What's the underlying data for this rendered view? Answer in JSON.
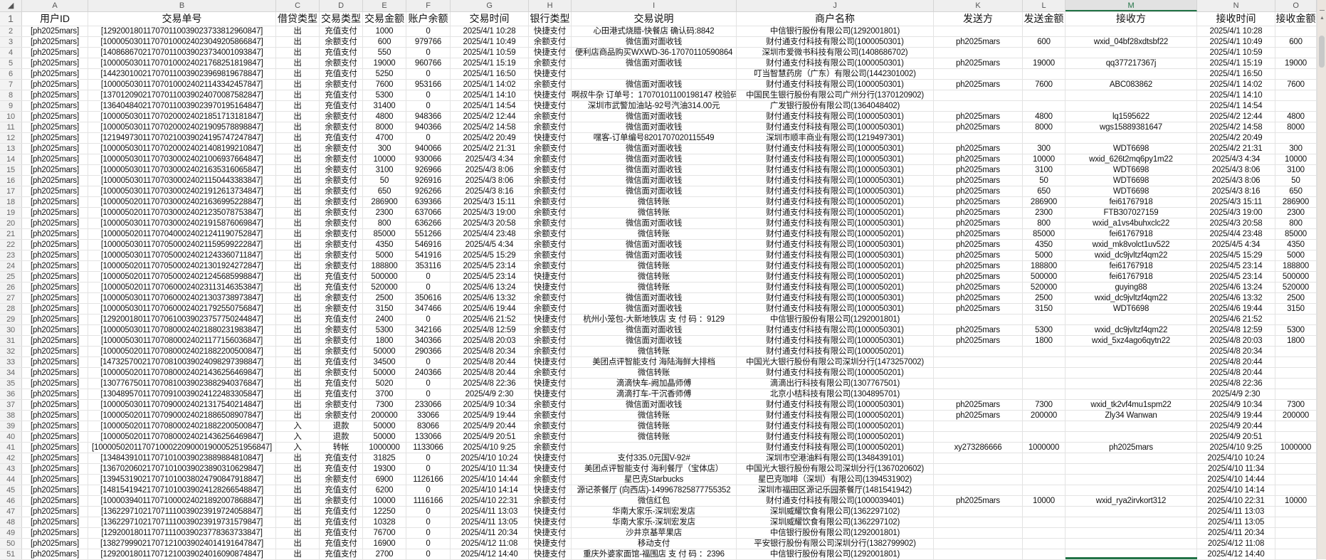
{
  "sheet": {
    "corner_icon": "select-all-triangle",
    "accent_color": "#217346",
    "selected_column": "M",
    "column_letters": [
      "A",
      "B",
      "C",
      "D",
      "E",
      "F",
      "G",
      "H",
      "I",
      "J",
      "K",
      "L",
      "M",
      "N",
      "O"
    ],
    "headers": [
      "用户ID",
      "交易单号",
      "借贷类型",
      "交易类型",
      "交易金额",
      "账户余额",
      "交易时间",
      "银行类型",
      "交易说明",
      "商户名称",
      "发送方",
      "发送金额",
      "接收方",
      "接收时间",
      "接收金额"
    ],
    "rows": [
      [
        "[ph2025mars]",
        "[129200180117070110039023733812960847]",
        "出",
        "充值支付",
        "1000",
        "0",
        "2025/4/1 10:28",
        "快捷支付",
        "心田港式烧腊-快餐店 确认码:8842",
        "中信银行股份有限公司(1292001801)",
        "",
        "",
        "",
        "2025/4/1 10:28",
        ""
      ],
      [
        "[ph2025mars]",
        "[100005030117070100024023049205866847]",
        "出",
        "余额支付",
        "600",
        "979766",
        "2025/4/1 10:49",
        "余额支付",
        "微信面对面收钱",
        "财付通支付科技有限公司(1000050301)",
        "ph2025mars",
        "600",
        "wxid_04bf28xdtsbf22",
        "2025/4/1 10:49",
        "600"
      ],
      [
        "[ph2025mars]",
        "[140868670217070110039023734001093847]",
        "出",
        "充值支付",
        "550",
        "0",
        "2025/4/1 10:59",
        "快捷支付",
        "便利店商品购买WXWD-36-17070110590864",
        "深圳市爱微书科技有限公司(1408686702)",
        "",
        "",
        "",
        "2025/4/1 10:59",
        ""
      ],
      [
        "[ph2025mars]",
        "[100005030117070100024021768251819847]",
        "出",
        "余额支付",
        "19000",
        "960766",
        "2025/4/1 15:19",
        "余额支付",
        "微信面对面收钱",
        "财付通支付科技有限公司(1000050301)",
        "ph2025mars",
        "19000",
        "qq377217367j",
        "2025/4/1 15:19",
        "19000"
      ],
      [
        "[ph2025mars]",
        "[144230100217070110039023969819678847]",
        "出",
        "充值支付",
        "5250",
        "0",
        "2025/4/1 16:50",
        "快捷支付",
        "",
        "叮当智慧药房（广东）有限公司(1442301002)",
        "",
        "",
        "",
        "2025/4/1 16:50",
        ""
      ],
      [
        "[ph2025mars]",
        "[100005030117070100024021143342457847]",
        "出",
        "余额支付",
        "7600",
        "953166",
        "2025/4/1 14:02",
        "余额支付",
        "微信面对面收钱",
        "财付通支付科技有限公司(1000050301)",
        "ph2025mars",
        "7600",
        "ABC083862",
        "2025/4/1 14:02",
        "7600"
      ],
      [
        "[ph2025mars]",
        "[137012090217070110039024070087582847]",
        "出",
        "充值支付",
        "5300",
        "0",
        "2025/4/1 14:10",
        "快捷支付",
        "啊叔牛杂 订单号：17070101100198147 校验码",
        "中国民生银行股份有限公司广州分行(1370120902)",
        "",
        "",
        "",
        "2025/4/1 14:10",
        ""
      ],
      [
        "[ph2025mars]",
        "[136404840217070110039023970195164847]",
        "出",
        "充值支付",
        "31400",
        "0",
        "2025/4/1 14:54",
        "快捷支付",
        "深圳市武警加油站-92号汽油314.00元",
        "广发银行股份有限公司(1364048402)",
        "",
        "",
        "",
        "2025/4/1 14:54",
        ""
      ],
      [
        "[ph2025mars]",
        "[100005030117070200024021851713181847]",
        "出",
        "余额支付",
        "4800",
        "948366",
        "2025/4/2 12:44",
        "余额支付",
        "微信面对面收钱",
        "财付通支付科技有限公司(1000050301)",
        "ph2025mars",
        "4800",
        "lq1595622",
        "2025/4/2 12:44",
        "4800"
      ],
      [
        "[ph2025mars]",
        "[100005030117070200024021909578898847]",
        "出",
        "余额支付",
        "8000",
        "940366",
        "2025/4/2 14:58",
        "余额支付",
        "微信面对面收钱",
        "财付通支付科技有限公司(1000050301)",
        "ph2025mars",
        "8000",
        "wgs15889381647",
        "2025/4/2 14:58",
        "8000"
      ],
      [
        "[ph2025mars]",
        "[121949730117070210039024195747247847]",
        "出",
        "充值支付",
        "4700",
        "0",
        "2025/4/2 20:49",
        "快捷支付",
        "嘿客-订单编号8201707020115549",
        "深圳市顺丰商业有限公司(1219497301)",
        "",
        "",
        "",
        "2025/4/2 20:49",
        ""
      ],
      [
        "[ph2025mars]",
        "[100005030117070200024021408199210847]",
        "出",
        "余额支付",
        "300",
        "940066",
        "2025/4/2 21:31",
        "余额支付",
        "微信面对面收钱",
        "财付通支付科技有限公司(1000050301)",
        "ph2025mars",
        "300",
        "WDT6698",
        "2025/4/2 21:31",
        "300"
      ],
      [
        "[ph2025mars]",
        "[100005030117070300024021006937664847]",
        "出",
        "余额支付",
        "10000",
        "930066",
        "2025/4/3 4:34",
        "余额支付",
        "微信面对面收钱",
        "财付通支付科技有限公司(1000050301)",
        "ph2025mars",
        "10000",
        "wxid_626t2mq6py1m22",
        "2025/4/3 4:34",
        "10000"
      ],
      [
        "[ph2025mars]",
        "[100005030117070300024021635316065847]",
        "出",
        "余额支付",
        "3100",
        "926966",
        "2025/4/3 8:06",
        "余额支付",
        "微信面对面收钱",
        "财付通支付科技有限公司(1000050301)",
        "ph2025mars",
        "3100",
        "WDT6698",
        "2025/4/3 8:06",
        "3100"
      ],
      [
        "[ph2025mars]",
        "[100005030117070300024021150443383847]",
        "出",
        "余额支付",
        "50",
        "926916",
        "2025/4/3 8:06",
        "余额支付",
        "微信面对面收钱",
        "财付通支付科技有限公司(1000050301)",
        "ph2025mars",
        "50",
        "WDT6698",
        "2025/4/3 8:06",
        "50"
      ],
      [
        "[ph2025mars]",
        "[100005030117070300024021912613734847]",
        "出",
        "余额支付",
        "650",
        "926266",
        "2025/4/3 8:16",
        "余额支付",
        "微信面对面收钱",
        "财付通支付科技有限公司(1000050301)",
        "ph2025mars",
        "650",
        "WDT6698",
        "2025/4/3 8:16",
        "650"
      ],
      [
        "[ph2025mars]",
        "[100005020117070300024021636995228847]",
        "出",
        "余额支付",
        "286900",
        "639366",
        "2025/4/3 15:11",
        "余额支付",
        "微信转账",
        "财付通支付科技有限公司(1000050201)",
        "ph2025mars",
        "286900",
        "fei61767918",
        "2025/4/3 15:11",
        "286900"
      ],
      [
        "[ph2025mars]",
        "[100005020117070300024021235078753847]",
        "出",
        "余额支付",
        "2300",
        "637066",
        "2025/4/3 19:00",
        "余额支付",
        "微信转账",
        "财付通支付科技有限公司(1000050201)",
        "ph2025mars",
        "2300",
        "FTB307027159",
        "2025/4/3 19:00",
        "2300"
      ],
      [
        "[ph2025mars]",
        "[100005030117070300024021915876069847]",
        "出",
        "余额支付",
        "800",
        "636266",
        "2025/4/3 20:58",
        "余额支付",
        "微信面对面收钱",
        "财付通支付科技有限公司(1000050301)",
        "ph2025mars",
        "800",
        "wxid_a1vs4buhxclc22",
        "2025/4/3 20:58",
        "800"
      ],
      [
        "[ph2025mars]",
        "[100005020117070400024021241190752847]",
        "出",
        "余额支付",
        "85000",
        "551266",
        "2025/4/4 23:48",
        "余额支付",
        "微信转账",
        "财付通支付科技有限公司(1000050201)",
        "ph2025mars",
        "85000",
        "fei61767918",
        "2025/4/4 23:48",
        "85000"
      ],
      [
        "[ph2025mars]",
        "[100005030117070500024021159599222847]",
        "出",
        "余额支付",
        "4350",
        "546916",
        "2025/4/5 4:34",
        "余额支付",
        "微信面对面收钱",
        "财付通支付科技有限公司(1000050301)",
        "ph2025mars",
        "4350",
        "wxid_mk8volct1uv522",
        "2025/4/5 4:34",
        "4350"
      ],
      [
        "[ph2025mars]",
        "[100005030117070500024021243360711847]",
        "出",
        "余额支付",
        "5000",
        "541916",
        "2025/4/5 15:29",
        "余额支付",
        "微信面对面收钱",
        "财付通支付科技有限公司(1000050301)",
        "ph2025mars",
        "5000",
        "wxid_dc9jvltzf4qm22",
        "2025/4/5 15:29",
        "5000"
      ],
      [
        "[ph2025mars]",
        "[100005020117070500024021301924272847]",
        "出",
        "余额支付",
        "188800",
        "353116",
        "2025/4/5 23:14",
        "余额支付",
        "微信转账",
        "财付通支付科技有限公司(1000050201)",
        "ph2025mars",
        "188800",
        "fei61767918",
        "2025/4/5 23:14",
        "188800"
      ],
      [
        "[ph2025mars]",
        "[100005020117070500024021245685998847]",
        "出",
        "充值支付",
        "500000",
        "0",
        "2025/4/5 23:14",
        "快捷支付",
        "微信转账",
        "财付通支付科技有限公司(1000050201)",
        "ph2025mars",
        "500000",
        "fei61767918",
        "2025/4/5 23:14",
        "500000"
      ],
      [
        "[ph2025mars]",
        "[100005020117070600024023113146353847]",
        "出",
        "充值支付",
        "520000",
        "0",
        "2025/4/6 13:24",
        "快捷支付",
        "微信转账",
        "财付通支付科技有限公司(1000050201)",
        "ph2025mars",
        "520000",
        "guying88",
        "2025/4/6 13:24",
        "520000"
      ],
      [
        "[ph2025mars]",
        "[100005030117070600024021303738973847]",
        "出",
        "余额支付",
        "2500",
        "350616",
        "2025/4/6 13:32",
        "余额支付",
        "微信面对面收钱",
        "财付通支付科技有限公司(1000050301)",
        "ph2025mars",
        "2500",
        "wxid_dc9jvltzf4qm22",
        "2025/4/6 13:32",
        "2500"
      ],
      [
        "[ph2025mars]",
        "[100005030117070600024021792550756847]",
        "出",
        "余额支付",
        "3150",
        "347466",
        "2025/4/6 19:44",
        "余额支付",
        "微信面对面收钱",
        "财付通支付科技有限公司(1000050301)",
        "ph2025mars",
        "3150",
        "WDT6698",
        "2025/4/6 19:44",
        "3150"
      ],
      [
        "[ph2025mars]",
        "[129200180117070610039023757750244847]",
        "出",
        "充值支付",
        "2400",
        "0",
        "2025/4/6 21:52",
        "快捷支付",
        "杭州小笼包-大新地铁店 支 付 码 ：9129",
        "中信银行股份有限公司(1292001801)",
        "",
        "",
        "",
        "2025/4/6 21:52",
        ""
      ],
      [
        "[ph2025mars]",
        "[100005030117070800024021880231983847]",
        "出",
        "余额支付",
        "5300",
        "342166",
        "2025/4/8 12:59",
        "余额支付",
        "微信面对面收钱",
        "财付通支付科技有限公司(1000050301)",
        "ph2025mars",
        "5300",
        "wxid_dc9jvltzf4qm22",
        "2025/4/8 12:59",
        "5300"
      ],
      [
        "[ph2025mars]",
        "[100005030117070800024021177156036847]",
        "出",
        "余额支付",
        "1800",
        "340366",
        "2025/4/8 20:03",
        "余额支付",
        "微信面对面收钱",
        "财付通支付科技有限公司(1000050301)",
        "ph2025mars",
        "1800",
        "wxid_5xz4ago6qytn22",
        "2025/4/8 20:03",
        "1800"
      ],
      [
        "[ph2025mars]",
        "[100005020117070800024021882200500847]",
        "出",
        "余额支付",
        "50000",
        "290366",
        "2025/4/8 20:34",
        "余额支付",
        "微信转账",
        "财付通支付科技有限公司(1000050201)",
        "",
        "",
        "",
        "2025/4/8 20:34",
        ""
      ],
      [
        "[ph2025mars]",
        "[147325700217070810039024098297398847]",
        "出",
        "充值支付",
        "34500",
        "0",
        "2025/4/8 20:44",
        "快捷支付",
        "美团点评智能支付 海陆海鲜大排档",
        "中国光大银行股份有限公司深圳分行(1473257002)",
        "",
        "",
        "",
        "2025/4/8 20:44",
        ""
      ],
      [
        "[ph2025mars]",
        "[100005020117070800024021436256469847]",
        "出",
        "余额支付",
        "50000",
        "240366",
        "2025/4/8 20:44",
        "余额支付",
        "微信转账",
        "财付通支付科技有限公司(1000050201)",
        "",
        "",
        "",
        "2025/4/8 20:44",
        ""
      ],
      [
        "[ph2025mars]",
        "[130776750117070810039023882940376847]",
        "出",
        "充值支付",
        "5020",
        "0",
        "2025/4/8 22:36",
        "快捷支付",
        "滴滴快车-阙加晶师傅",
        "滴滴出行科技有限公司(1307767501)",
        "",
        "",
        "",
        "2025/4/8 22:36",
        ""
      ],
      [
        "[ph2025mars]",
        "[130489570117070910039024122483305847]",
        "出",
        "充值支付",
        "3700",
        "0",
        "2025/4/9 2:30",
        "快捷支付",
        "滴滴打车-干沉香师傅",
        "北京小桔科技有限公司(1304895701)",
        "",
        "",
        "",
        "2025/4/9 2:30",
        ""
      ],
      [
        "[ph2025mars]",
        "[100005030117070900024021317540214847]",
        "出",
        "余额支付",
        "7300",
        "233066",
        "2025/4/9 10:34",
        "余额支付",
        "微信面对面收钱",
        "财付通支付科技有限公司(1000050301)",
        "ph2025mars",
        "7300",
        "wxid_tk2vf4mu1spm22",
        "2025/4/9 10:34",
        "7300"
      ],
      [
        "[ph2025mars]",
        "[100005020117070900024021886508907847]",
        "出",
        "余额支付",
        "200000",
        "33066",
        "2025/4/9 19:44",
        "余额支付",
        "微信转账",
        "财付通支付科技有限公司(1000050201)",
        "ph2025mars",
        "200000",
        "Zly34 Wanwan",
        "2025/4/9 19:44",
        "200000"
      ],
      [
        "[ph2025mars]",
        "[100005020117070800024021882200500847]",
        "入",
        "退款",
        "50000",
        "83066",
        "2025/4/9 20:44",
        "余额支付",
        "微信转账",
        "财付通支付科技有限公司(1000050201)",
        "",
        "",
        "",
        "2025/4/9 20:44",
        ""
      ],
      [
        "[ph2025mars]",
        "[100005020117070800024021436256469847]",
        "入",
        "退款",
        "50000",
        "133066",
        "2025/4/9 20:51",
        "余额支付",
        "微信转账",
        "财付通支付科技有限公司(1000050201)",
        "",
        "",
        "",
        "2025/4/9 20:51",
        ""
      ],
      [
        "[ph2025mars]",
        "[1000050201170710002209000190005251956847]",
        "入",
        "转帐",
        "1000000",
        "1133066",
        "2025/4/10 9:25",
        "余额支付",
        "",
        "财付通支付科技有限公司(1000050201)",
        "xy273286666",
        "1000000",
        "ph2025mars",
        "2025/4/10 9:25",
        "1000000"
      ],
      [
        "[ph2025mars]",
        "[134843910117071010039023889884810847]",
        "出",
        "充值支付",
        "31825",
        "0",
        "2025/4/10 10:24",
        "快捷支付",
        "支付335.0元国V-92#",
        "深圳市空港油料有限公司(1348439101)",
        "",
        "",
        "",
        "2025/4/10 10:24",
        ""
      ],
      [
        "[ph2025mars]",
        "[136702060217071010039023890310629847]",
        "出",
        "充值支付",
        "19300",
        "0",
        "2025/4/10 11:34",
        "快捷支付",
        "美团点评智能支付 海利餐厅（宝体店）",
        "中国光大银行股份有限公司深圳分行(1367020602)",
        "",
        "",
        "",
        "2025/4/10 11:34",
        ""
      ],
      [
        "[ph2025mars]",
        "[139453190217071010038024790847918847]",
        "出",
        "余额支付",
        "6900",
        "1126166",
        "2025/4/10 14:44",
        "余额支付",
        "星巴克Starbucks",
        "星巴克咖啡（深圳）有限公司(1394531902)",
        "",
        "",
        "",
        "2025/4/10 14:44",
        ""
      ],
      [
        "[ph2025mars]",
        "[148154194217071010039024128266548847]",
        "出",
        "充值支付",
        "6200",
        "0",
        "2025/4/10 14:14",
        "快捷支付",
        "源记茶餐厅 (向西店)-149967825877755352",
        "深圳市福田区源记乐园茶餐厅(1481541942)",
        "",
        "",
        "",
        "2025/4/10 14:14",
        ""
      ],
      [
        "[ph2025mars]",
        "[100003940117071000024021892007868847]",
        "出",
        "余额支付",
        "10000",
        "1116166",
        "2025/4/10 22:31",
        "余额支付",
        "微信红包",
        "财付通支付科技有限公司(1000039401)",
        "ph2025mars",
        "10000",
        "wxid_rya2irvkort312",
        "2025/4/10 22:31",
        "10000"
      ],
      [
        "[ph2025mars]",
        "[136229710217071110039023919724058847]",
        "出",
        "充值支付",
        "12250",
        "0",
        "2025/4/11 13:03",
        "快捷支付",
        "华南大家乐-深圳宏发店",
        "深圳威耀饮食有限公司(1362297102)",
        "",
        "",
        "",
        "2025/4/11 13:03",
        ""
      ],
      [
        "[ph2025mars]",
        "[136229710217071110039023919731579847]",
        "出",
        "充值支付",
        "10328",
        "0",
        "2025/4/11 13:05",
        "快捷支付",
        "华南大家乐-深圳宏发店",
        "深圳威耀饮食有限公司(1362297102)",
        "",
        "",
        "",
        "2025/4/11 13:05",
        ""
      ],
      [
        "[ph2025mars]",
        "[129200180117071110039023778363733847]",
        "出",
        "充值支付",
        "76700",
        "0",
        "2025/4/11 20:34",
        "快捷支付",
        "沙井京基苹果店",
        "中信银行股份有限公司(1292001801)",
        "",
        "",
        "",
        "2025/4/11 20:34",
        ""
      ],
      [
        "[ph2025mars]",
        "[138279990217071210039024014191647847]",
        "出",
        "充值支付",
        "16900",
        "0",
        "2025/4/12 11:08",
        "快捷支付",
        "移动支付",
        "平安银行股份有限公司深圳分行(1382799902)",
        "",
        "",
        "",
        "2025/4/12 11:08",
        ""
      ],
      [
        "[ph2025mars]",
        "[129200180117071210039024016090874847]",
        "出",
        "充值支付",
        "2700",
        "0",
        "2025/4/12 14:40",
        "快捷支付",
        "重庆外婆家面馆-福围店 支 付 码 ：2396",
        "中信银行股份有限公司(1292001801)",
        "",
        "",
        "",
        "2025/4/12 14:40",
        ""
      ]
    ]
  }
}
